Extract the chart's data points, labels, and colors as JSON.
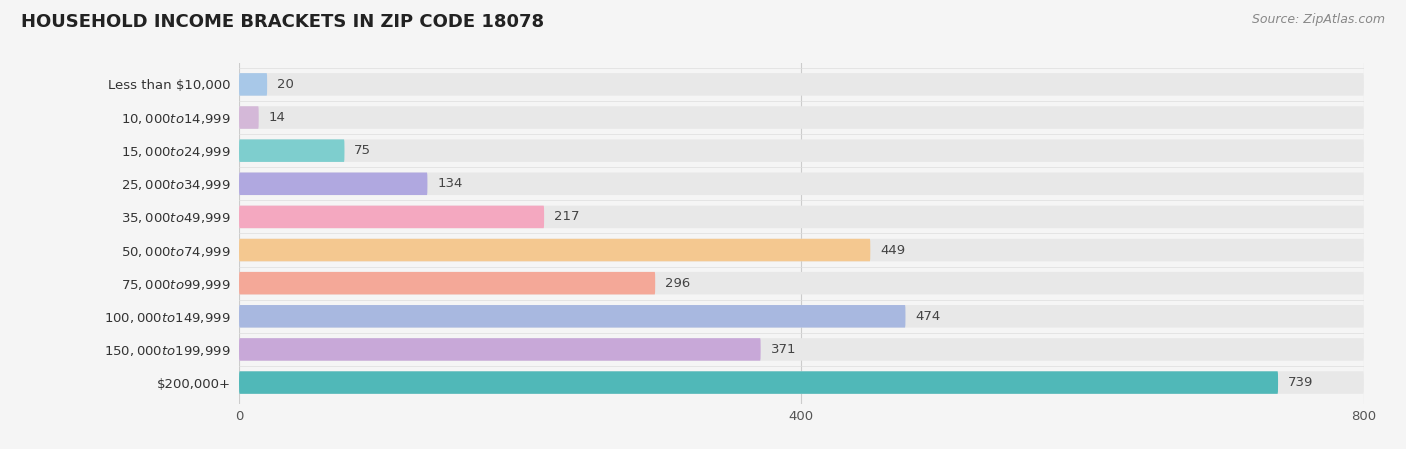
{
  "title": "HOUSEHOLD INCOME BRACKETS IN ZIP CODE 18078",
  "source": "Source: ZipAtlas.com",
  "categories": [
    "Less than $10,000",
    "$10,000 to $14,999",
    "$15,000 to $24,999",
    "$25,000 to $34,999",
    "$35,000 to $49,999",
    "$50,000 to $74,999",
    "$75,000 to $99,999",
    "$100,000 to $149,999",
    "$150,000 to $199,999",
    "$200,000+"
  ],
  "values": [
    20,
    14,
    75,
    134,
    217,
    449,
    296,
    474,
    371,
    739
  ],
  "colors": [
    "#a8c8e8",
    "#d4b8d8",
    "#7ecece",
    "#b0a8e0",
    "#f4a8c0",
    "#f4c890",
    "#f4a898",
    "#a8b8e0",
    "#c8a8d8",
    "#50b8b8"
  ],
  "xlim": [
    0,
    800
  ],
  "xticks": [
    0,
    400,
    800
  ],
  "background_color": "#f5f5f5",
  "bar_bg_color": "#e8e8e8",
  "title_fontsize": 13,
  "label_fontsize": 9.5,
  "value_fontsize": 9.5,
  "source_fontsize": 9
}
